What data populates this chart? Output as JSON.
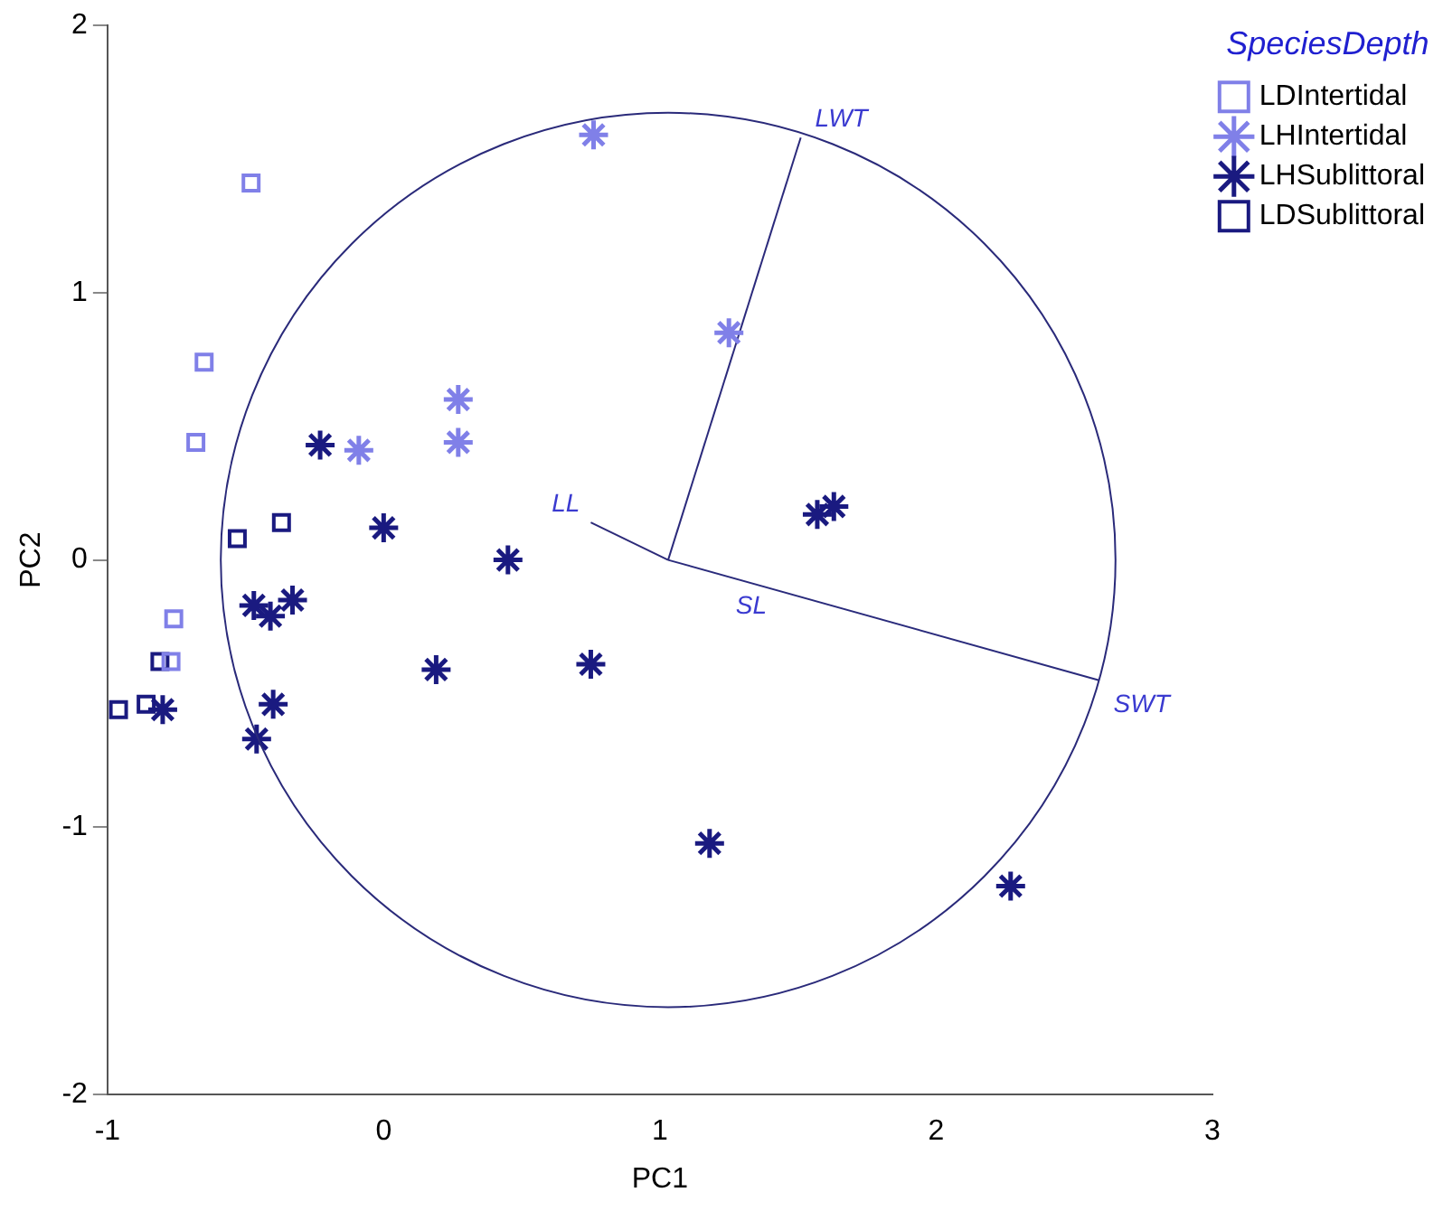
{
  "chart_data": {
    "type": "scatter",
    "xlabel": "PC1",
    "ylabel": "PC2",
    "legend_title": "SpeciesDepth",
    "legend": "top right",
    "grid": false,
    "xlim": [
      -1,
      3
    ],
    "xticks": [
      -1,
      0,
      1,
      2,
      3
    ],
    "ylim": [
      -2,
      2
    ],
    "yticks": [
      -2,
      -1,
      0,
      1,
      2
    ],
    "series": [
      {
        "name": "LDIntertidal",
        "marker": "square",
        "color": "#8080e8",
        "x": [
          -0.48,
          -0.65,
          -0.68,
          -0.76,
          -0.77
        ],
        "values": [
          1.41,
          0.74,
          0.44,
          -0.22,
          -0.38
        ]
      },
      {
        "name": "LHIntertidal",
        "marker": "cross",
        "color": "#8080e8",
        "x": [
          0.76,
          1.25,
          0.27,
          0.27,
          -0.09
        ],
        "values": [
          1.59,
          0.85,
          0.6,
          0.44,
          0.41
        ]
      },
      {
        "name": "LHSublittoral",
        "marker": "cross",
        "color": "#1a1a80",
        "x": [
          -0.23,
          0.0,
          0.45,
          -0.47,
          -0.41,
          -0.33,
          0.19,
          0.75,
          -0.4,
          -0.46,
          -0.8,
          1.57,
          1.63,
          1.18,
          2.27
        ],
        "values": [
          0.43,
          0.12,
          0.0,
          -0.17,
          -0.21,
          -0.15,
          -0.41,
          -0.39,
          -0.54,
          -0.67,
          -0.56,
          0.17,
          0.2,
          -1.06,
          -1.22
        ]
      },
      {
        "name": "LDSublittoral",
        "marker": "square",
        "color": "#1a1a80",
        "x": [
          -0.53,
          -0.37,
          -0.81,
          -0.96,
          -0.86
        ],
        "values": [
          0.08,
          0.14,
          -0.38,
          -0.56,
          -0.54
        ]
      },
      {
        "name": "LWT",
        "type": "line",
        "color": "#2b2a7b",
        "x": [
          1.03,
          1.51
        ],
        "values": [
          0.0,
          1.58
        ]
      },
      {
        "name": "SWT",
        "type": "line",
        "color": "#2a2b7c",
        "x": [
          1.03,
          2.59
        ],
        "values": [
          0.0,
          -0.45
        ]
      },
      {
        "name": "LL",
        "type": "line",
        "color": "#2c2a79",
        "x": [
          0.75,
          1.03
        ],
        "values": [
          0.14,
          0.0
        ]
      }
    ],
    "annotations": [
      "SL"
    ]
  }
}
